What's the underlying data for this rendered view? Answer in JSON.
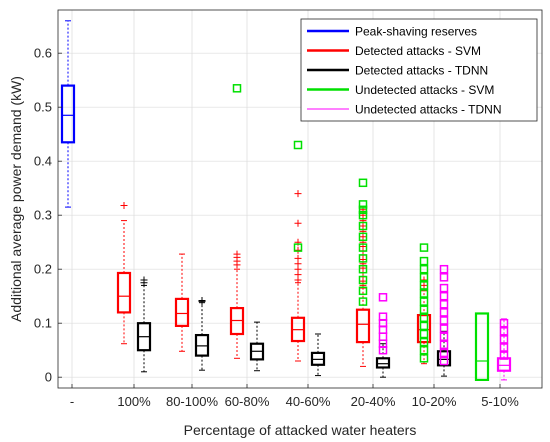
{
  "chart_data": {
    "type": "boxplot",
    "title": "",
    "xlabel": "Percentage of attacked water heaters",
    "ylabel": "Additional average power demand (kW)",
    "ylim": [
      -0.02,
      0.68
    ],
    "yticks": [
      0,
      0.1,
      0.2,
      0.3,
      0.4,
      0.5,
      0.6
    ],
    "categories": [
      "-",
      "100%",
      "80-100%",
      "60-80%",
      "40-60%",
      "20-40%",
      "10-20%",
      "5-10%"
    ],
    "grid": true,
    "legend_position": "top-right",
    "series": [
      {
        "name": "Peak-shaving reserves",
        "color": "#0000ff",
        "outlier_marker": "plus",
        "boxes": [
          {
            "category": "-",
            "q1": 0.435,
            "median": 0.485,
            "q3": 0.54,
            "whisker_low": 0.315,
            "whisker_high": 0.66,
            "outliers": []
          }
        ]
      },
      {
        "name": "Detected attacks - SVM",
        "color": "#ff0000",
        "outlier_marker": "plus",
        "boxes": [
          {
            "category": "100%",
            "q1": 0.12,
            "median": 0.15,
            "q3": 0.193,
            "whisker_low": 0.062,
            "whisker_high": 0.29,
            "outliers": [
              0.318
            ]
          },
          {
            "category": "80-100%",
            "q1": 0.095,
            "median": 0.118,
            "q3": 0.145,
            "whisker_low": 0.048,
            "whisker_high": 0.228,
            "outliers": []
          },
          {
            "category": "60-80%",
            "q1": 0.08,
            "median": 0.105,
            "q3": 0.128,
            "whisker_low": 0.035,
            "whisker_high": 0.2,
            "outliers": [
              0.208,
              0.215,
              0.222,
              0.228
            ]
          },
          {
            "category": "40-60%",
            "q1": 0.067,
            "median": 0.088,
            "q3": 0.11,
            "whisker_low": 0.03,
            "whisker_high": 0.175,
            "outliers": [
              0.18,
              0.19,
              0.2,
              0.21,
              0.22,
              0.235,
              0.25,
              0.285,
              0.34
            ]
          },
          {
            "category": "20-40%",
            "q1": 0.065,
            "median": 0.098,
            "q3": 0.125,
            "whisker_low": 0.02,
            "whisker_high": 0.165,
            "outliers": [
              0.17,
              0.178,
              0.186,
              0.194,
              0.202,
              0.21,
              0.218,
              0.226,
              0.234,
              0.242,
              0.25,
              0.26,
              0.27,
              0.28,
              0.29,
              0.3,
              0.31
            ]
          },
          {
            "category": "10-20%",
            "q1": 0.065,
            "median": 0.088,
            "q3": 0.115,
            "whisker_low": 0.025,
            "whisker_high": 0.16,
            "outliers": [
              0.17,
              0.18
            ]
          }
        ]
      },
      {
        "name": "Detected attacks - TDNN",
        "color": "#000000",
        "outlier_marker": "plus",
        "boxes": [
          {
            "category": "100%",
            "q1": 0.05,
            "median": 0.075,
            "q3": 0.1,
            "whisker_low": 0.01,
            "whisker_high": 0.17,
            "outliers": [
              0.175,
              0.18
            ]
          },
          {
            "category": "80-100%",
            "q1": 0.04,
            "median": 0.058,
            "q3": 0.078,
            "whisker_low": 0.013,
            "whisker_high": 0.138,
            "outliers": [
              0.14,
              0.142
            ]
          },
          {
            "category": "60-80%",
            "q1": 0.033,
            "median": 0.048,
            "q3": 0.062,
            "whisker_low": 0.012,
            "whisker_high": 0.102,
            "outliers": []
          },
          {
            "category": "40-60%",
            "q1": 0.023,
            "median": 0.033,
            "q3": 0.045,
            "whisker_low": 0.003,
            "whisker_high": 0.08,
            "outliers": []
          },
          {
            "category": "20-40%",
            "q1": 0.018,
            "median": 0.025,
            "q3": 0.035,
            "whisker_low": 0.0,
            "whisker_high": 0.062,
            "outliers": []
          },
          {
            "category": "10-20%",
            "q1": 0.022,
            "median": 0.033,
            "q3": 0.048,
            "whisker_low": 0.002,
            "whisker_high": 0.085,
            "outliers": []
          }
        ]
      },
      {
        "name": "Undetected attacks - SVM",
        "color": "#00e000",
        "outlier_marker": "square",
        "boxes": [
          {
            "category": "60-80%",
            "q1": null,
            "median": null,
            "q3": null,
            "whisker_low": null,
            "whisker_high": null,
            "outliers": [
              0.535
            ]
          },
          {
            "category": "40-60%",
            "q1": null,
            "median": null,
            "q3": null,
            "whisker_low": null,
            "whisker_high": null,
            "outliers": [
              0.24,
              0.43
            ]
          },
          {
            "category": "20-40%",
            "q1": null,
            "median": null,
            "q3": null,
            "whisker_low": null,
            "whisker_high": null,
            "outliers": [
              0.14,
              0.16,
              0.18,
              0.2,
              0.22,
              0.24,
              0.26,
              0.28,
              0.3,
              0.31,
              0.32,
              0.36
            ]
          },
          {
            "category": "10-20%",
            "q1": null,
            "median": null,
            "q3": null,
            "whisker_low": null,
            "whisker_high": null,
            "outliers": [
              0.035,
              0.05,
              0.065,
              0.08,
              0.095,
              0.11,
              0.125,
              0.14,
              0.155,
              0.17,
              0.185,
              0.2,
              0.215,
              0.24
            ]
          },
          {
            "category": "5-10%",
            "q1": -0.005,
            "median": 0.03,
            "q3": 0.118,
            "whisker_low": -0.005,
            "whisker_high": 0.118,
            "outliers": []
          }
        ]
      },
      {
        "name": "Undetected attacks - TDNN",
        "color": "#ff00ff",
        "outlier_marker": "square",
        "boxes": [
          {
            "category": "20-40%",
            "q1": null,
            "median": null,
            "q3": null,
            "whisker_low": null,
            "whisker_high": null,
            "outliers": [
              0.05,
              0.062,
              0.075,
              0.088,
              0.1,
              0.112,
              0.148
            ]
          },
          {
            "category": "10-20%",
            "q1": null,
            "median": null,
            "q3": null,
            "whisker_low": null,
            "whisker_high": null,
            "outliers": [
              0.03,
              0.045,
              0.06,
              0.075,
              0.09,
              0.105,
              0.12,
              0.135,
              0.15,
              0.165,
              0.185,
              0.2
            ]
          },
          {
            "category": "5-10%",
            "q1": 0.012,
            "median": 0.022,
            "q3": 0.035,
            "whisker_low": -0.005,
            "whisker_high": 0.108,
            "outliers": [
              0.04,
              0.055,
              0.07,
              0.085,
              0.1
            ]
          }
        ]
      }
    ]
  }
}
